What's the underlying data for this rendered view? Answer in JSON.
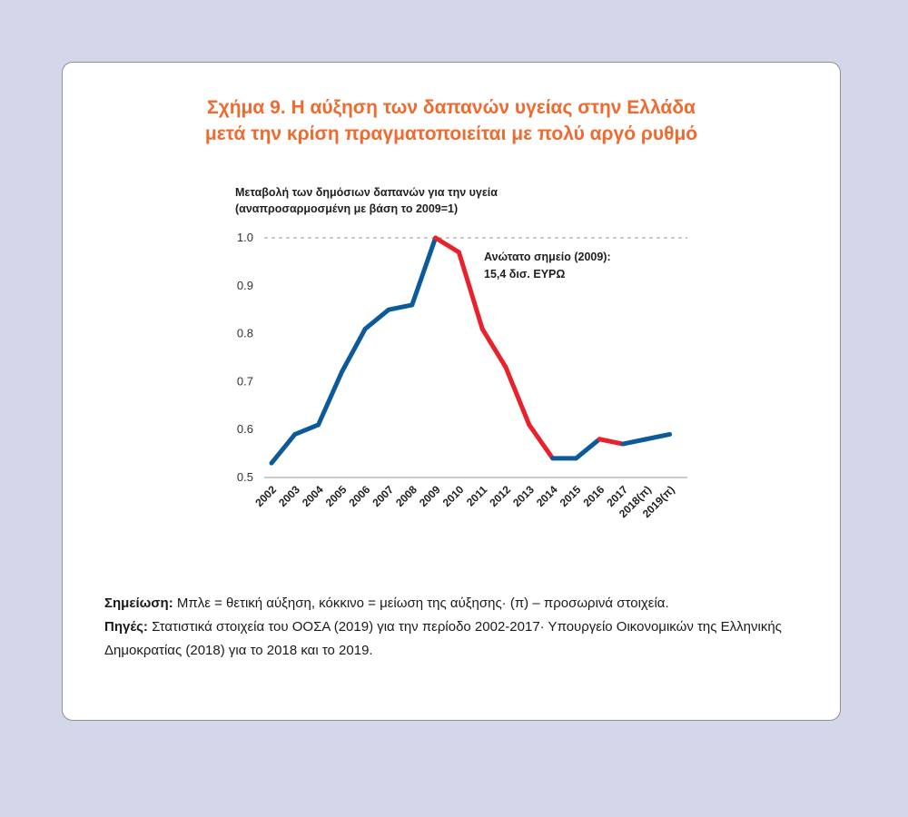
{
  "figure": {
    "title_line1": "Σχήμα 9. Η αύξηση των δαπανών υγείας στην Ελλάδα",
    "title_line2": "μετά την κρίση πραγματοποιείται με πολύ αργό ρυθμό"
  },
  "chart_data": {
    "type": "line",
    "ylabel_line1": "Μεταβολή των δημόσιων δαπανών για την υγεία",
    "ylabel_line2": "(αναπροσαρμοσμένη με βάση το 2009=1)",
    "categories": [
      "2002",
      "2003",
      "2004",
      "2005",
      "2006",
      "2007",
      "2008",
      "2009",
      "2010",
      "2011",
      "2012",
      "2013",
      "2014",
      "2015",
      "2016",
      "2017",
      "2018(π)",
      "2019(π)"
    ],
    "values": [
      0.53,
      0.59,
      0.61,
      0.72,
      0.81,
      0.85,
      0.86,
      1.0,
      0.97,
      0.81,
      0.73,
      0.61,
      0.54,
      0.54,
      0.58,
      0.57,
      0.58,
      0.59
    ],
    "segment_colors": [
      "blue",
      "blue",
      "blue",
      "blue",
      "blue",
      "blue",
      "blue",
      "red",
      "red",
      "red",
      "red",
      "red",
      "blue",
      "blue",
      "red",
      "blue",
      "blue"
    ],
    "colors": {
      "blue": "#0d5a9a",
      "red": "#e8212a"
    },
    "ylim": [
      0.5,
      1.0
    ],
    "yticks": [
      "0.5",
      "0.6",
      "0.7",
      "0.8",
      "0.9",
      "1.0"
    ],
    "reference_line": 1.0,
    "grid": false,
    "annotation_line1": "Ανώτατο σημείο (2009):",
    "annotation_line2": "15,4 δισ. ΕΥΡΩ"
  },
  "notes": {
    "note_label": "Σημείωση:",
    "note_text": " Μπλε = θετική αύξηση, κόκκινο = μείωση της αύξησης· (π) – προσωρινά στοιχεία.",
    "source_label": "Πηγές:",
    "source_text": " Στατιστικά στοιχεία του ΟΟΣΑ (2019) για την περίοδο 2002-2017· Υπουργείο Οικονομικών της Ελληνικής Δημοκρατίας (2018) για το 2018 και το 2019."
  }
}
